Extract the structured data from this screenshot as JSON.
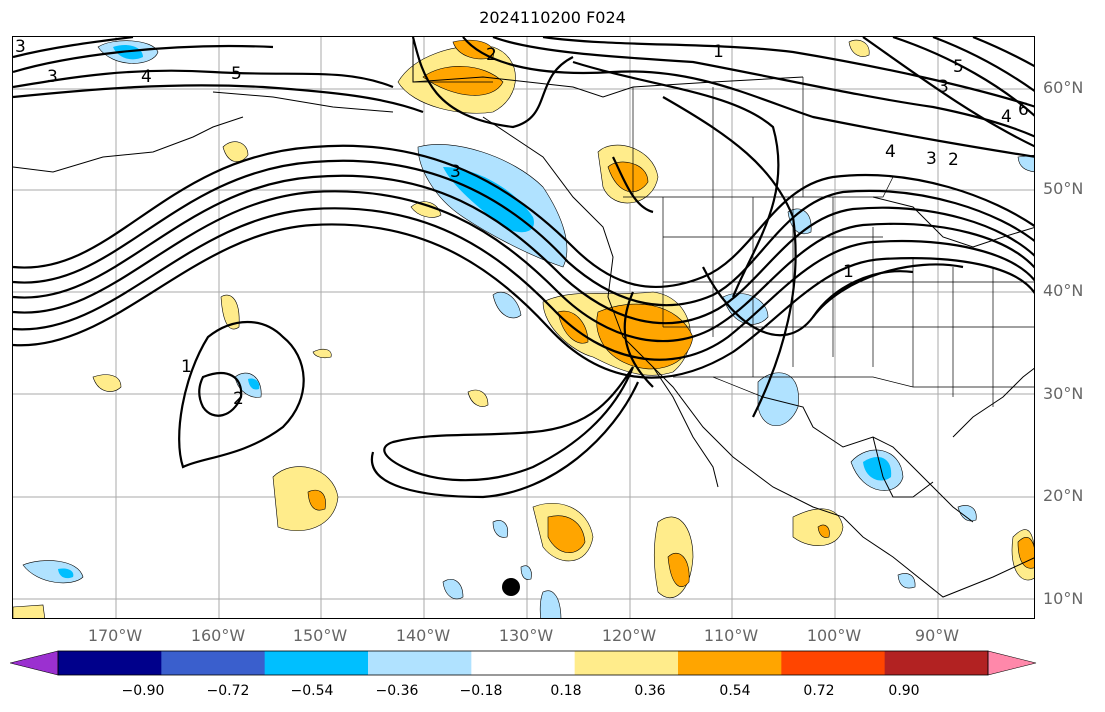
{
  "title": "2024110200 F024",
  "lat_labels": [
    "60°N",
    "50°N",
    "40°N",
    "30°N",
    "20°N",
    "10°N"
  ],
  "lon_labels": [
    "170°W",
    "160°W",
    "150°W",
    "140°W",
    "130°W",
    "120°W",
    "110°W",
    "100°W",
    "90°W"
  ],
  "contour_labels": [
    "3",
    "4",
    "5",
    "2",
    "1",
    "3",
    "1",
    "2",
    "3",
    "4",
    "5",
    "6",
    "4",
    "3",
    "2",
    "1"
  ],
  "colorbar": {
    "tick_labels": [
      "−0.90",
      "−0.72",
      "−0.54",
      "−0.36",
      "−0.18",
      "0.18",
      "0.36",
      "0.54",
      "0.72",
      "0.90"
    ],
    "colors": [
      "#9b30d0",
      "#00008b",
      "#3a5fcd",
      "#00bfff",
      "#b0e2ff",
      "#ffffff",
      "#ffec8b",
      "#ffa500",
      "#ff4500",
      "#b22222",
      "#ff88aa"
    ]
  },
  "marker": "storm-center-dot"
}
